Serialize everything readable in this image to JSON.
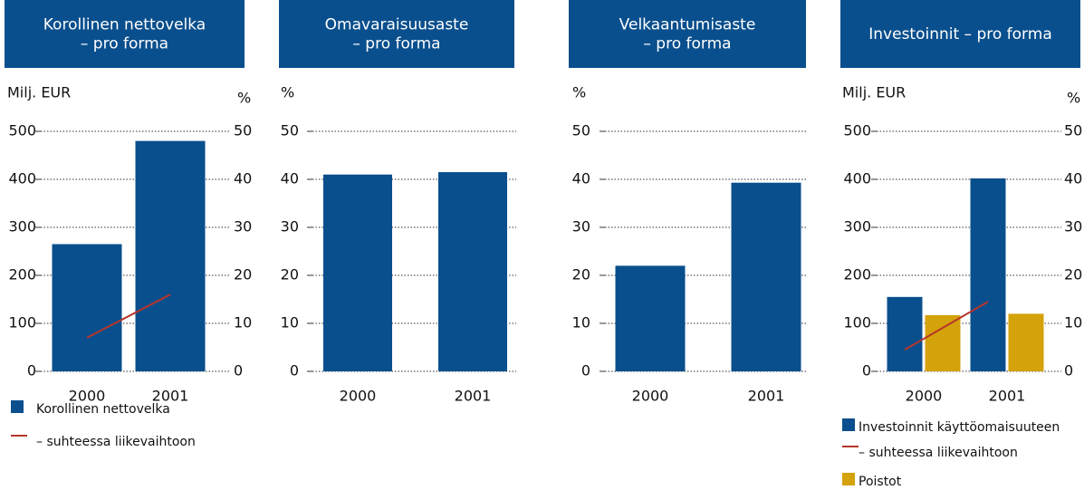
{
  "chart_data": [
    {
      "type": "bar",
      "title": [
        "Korollinen nettovelka",
        "– pro forma"
      ],
      "ylabel": "Milj. EUR",
      "y2label": "%",
      "categories": [
        "2000",
        "2001"
      ],
      "series": [
        {
          "name": "Korollinen nettovelka",
          "type": "bar",
          "color": "#0a4f8d",
          "values": [
            265,
            480
          ]
        },
        {
          "name": "– suhteessa liikevaihtoon",
          "type": "line",
          "axis": "y2",
          "color": "#b5352b",
          "values": [
            7,
            16
          ]
        }
      ],
      "ylim": [
        0,
        500
      ],
      "yticks": [
        0,
        100,
        200,
        300,
        400,
        500
      ],
      "y2lim": [
        0,
        50
      ],
      "y2ticks": [
        0,
        10,
        20,
        30,
        40,
        50
      ],
      "grid": true
    },
    {
      "type": "bar",
      "title": [
        "Omavaraisuusaste",
        "– pro forma"
      ],
      "ylabel": "%",
      "categories": [
        "2000",
        "2001"
      ],
      "series": [
        {
          "type": "bar",
          "color": "#0a4f8d",
          "values": [
            41,
            41.5
          ]
        }
      ],
      "ylim": [
        0,
        50
      ],
      "yticks": [
        0,
        10,
        20,
        30,
        40,
        50
      ],
      "grid": true
    },
    {
      "type": "bar",
      "title": [
        "Velkaantumisaste",
        "– pro forma"
      ],
      "ylabel": "%",
      "categories": [
        "2000",
        "2001"
      ],
      "series": [
        {
          "type": "bar",
          "color": "#0a4f8d",
          "values": [
            22,
            39.3
          ]
        }
      ],
      "ylim": [
        0,
        50
      ],
      "yticks": [
        0,
        10,
        20,
        30,
        40,
        50
      ],
      "grid": true
    },
    {
      "type": "bar",
      "title": [
        "Investoinnit  – pro forma"
      ],
      "ylabel": "Milj. EUR",
      "y2label": "%",
      "categories": [
        "2000",
        "2001"
      ],
      "series": [
        {
          "name": "Investoinnit käyttöomaisuuteen",
          "type": "bar",
          "color": "#0a4f8d",
          "values": [
            155,
            402
          ]
        },
        {
          "name": "– suhteessa liikevaihtoon",
          "type": "line",
          "axis": "y2",
          "color": "#b5352b",
          "values": [
            4.5,
            14.5
          ]
        },
        {
          "name": "Poistot",
          "type": "bar",
          "color": "#d4a20a",
          "values": [
            117,
            120
          ]
        }
      ],
      "ylim": [
        0,
        500
      ],
      "yticks": [
        0,
        100,
        200,
        300,
        400,
        500
      ],
      "y2lim": [
        0,
        50
      ],
      "y2ticks": [
        0,
        10,
        20,
        30,
        40,
        50
      ],
      "grid": true
    }
  ]
}
